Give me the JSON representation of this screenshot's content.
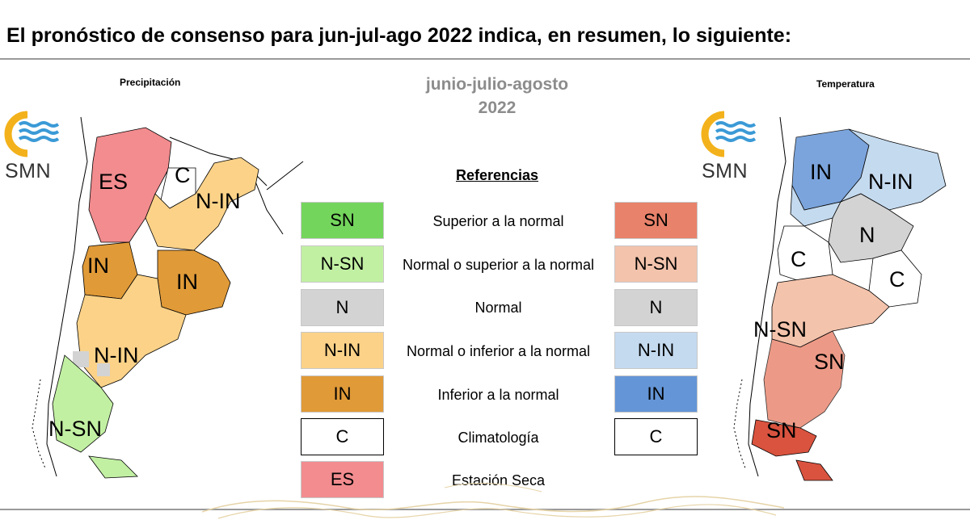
{
  "headline": "El pronóstico de consenso para  jun-jul-ago 2022 indica, en resumen, lo siguiente:",
  "precip_title": "Precipitación",
  "temp_title": "Temperatura",
  "period_line1": "junio-julio-agosto",
  "period_line2": "2022",
  "references_title": "Referencias",
  "logo_text": "SMN",
  "legend": [
    {
      "desc": "Superior a la normal",
      "precip_code": "SN",
      "precip_color": "#74d55d",
      "temp_code": "SN",
      "temp_color": "#e8826a"
    },
    {
      "desc": "Normal o superior a la normal",
      "precip_code": "N-SN",
      "precip_color": "#c2f0a3",
      "temp_code": "N-SN",
      "temp_color": "#f3c3ac"
    },
    {
      "desc": "Normal",
      "precip_code": "N",
      "precip_color": "#d3d3d3",
      "temp_code": "N",
      "temp_color": "#d3d3d3"
    },
    {
      "desc": "Normal o inferior a la normal",
      "precip_code": "N-IN",
      "precip_color": "#fbd288",
      "temp_code": "N-IN",
      "temp_color": "#c4daef"
    },
    {
      "desc": "Inferior a la normal",
      "precip_code": "IN",
      "precip_color": "#e09a38",
      "temp_code": "IN",
      "temp_color": "#6495d6"
    },
    {
      "desc": "Climatología",
      "precip_code": "C",
      "precip_color": "#ffffff",
      "temp_code": "C",
      "temp_color": "#ffffff"
    },
    {
      "desc": "Estación Seca",
      "precip_code": "ES",
      "precip_color": "#f28c8f"
    }
  ],
  "precip_map_labels": [
    "ES",
    "C",
    "N-IN",
    "IN",
    "IN",
    "N-IN",
    "N-SN"
  ],
  "temp_map_labels": [
    "IN",
    "N-IN",
    "N",
    "C",
    "C",
    "N-SN",
    "SN",
    "SN"
  ]
}
